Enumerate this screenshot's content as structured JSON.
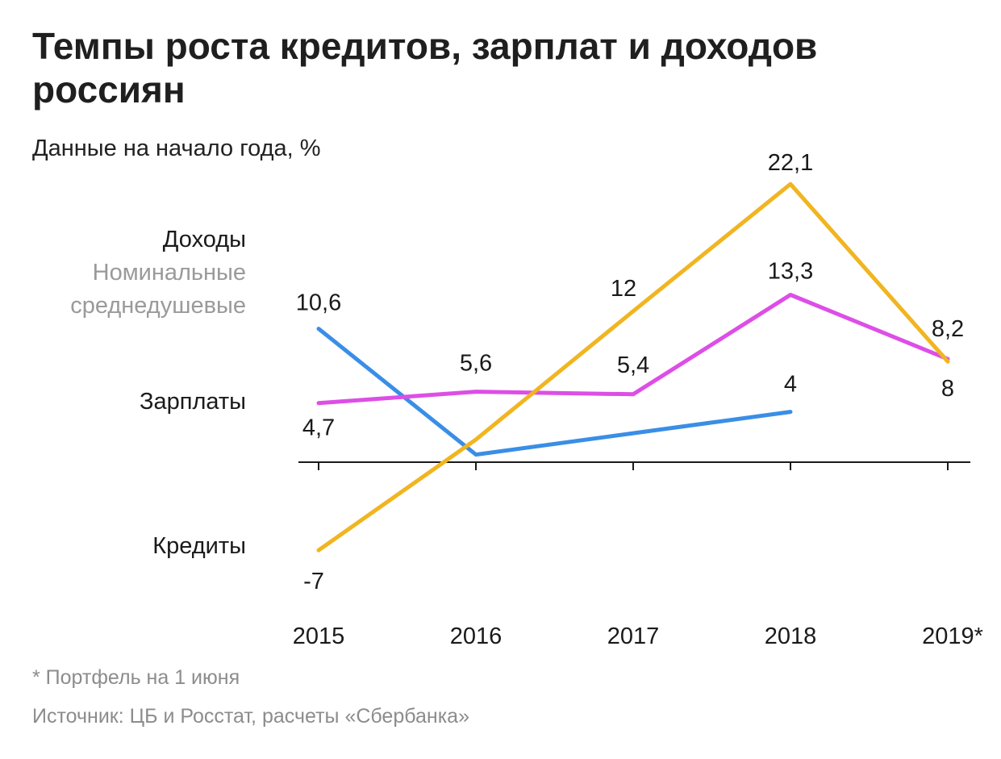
{
  "title": "Темпы роста кредитов, зарплат и доходов россиян",
  "subtitle": "Данные на начало года, %",
  "footnote": "* Портфель на 1 июня",
  "source": "Источник: ЦБ и Росстат, расчеты «Сбербанка»",
  "chart_data": {
    "type": "line",
    "categories": [
      "2015",
      "2016",
      "2017",
      "2018",
      "2019*"
    ],
    "ylim": [
      -10,
      25
    ],
    "grid": false,
    "series": [
      {
        "key": "income",
        "name": "Доходы",
        "sublabel": [
          "Номинальные",
          "среднедушевые"
        ],
        "color": "#3a8ee6",
        "values": [
          10.6,
          0.6,
          2.3,
          4.0,
          null
        ],
        "labels": [
          "10,6",
          "",
          "",
          "4",
          ""
        ]
      },
      {
        "key": "wages",
        "name": "Зарплаты",
        "color": "#dd4ee6",
        "values": [
          4.7,
          5.6,
          5.4,
          13.3,
          8.2
        ],
        "labels": [
          "4,7",
          "5,6",
          "5,4",
          "13,3",
          "8,2"
        ]
      },
      {
        "key": "credit",
        "name": "Кредиты",
        "color": "#f0b520",
        "values": [
          -7,
          1.8,
          12,
          22.1,
          8
        ],
        "labels": [
          "-7",
          "",
          "12",
          "22,1",
          "8"
        ]
      }
    ]
  }
}
